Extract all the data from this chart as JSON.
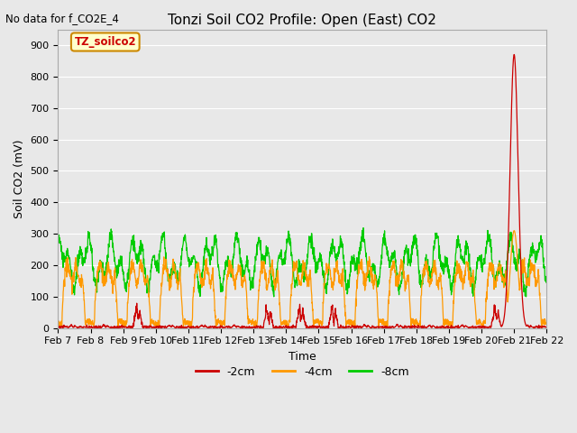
{
  "title": "Tonzi Soil CO2 Profile: Open (East) CO2",
  "subtitle": "No data for f_CO2E_4",
  "ylabel": "Soil CO2 (mV)",
  "xlabel": "Time",
  "legend_label": "TZ_soilco2",
  "series_labels": [
    "-2cm",
    "-4cm",
    "-8cm"
  ],
  "series_colors": [
    "#cc0000",
    "#ff9900",
    "#00cc00"
  ],
  "ylim": [
    0,
    950
  ],
  "yticks": [
    0,
    100,
    200,
    300,
    400,
    500,
    600,
    700,
    800,
    900
  ],
  "xtick_labels": [
    "Feb 7",
    "Feb 8",
    "Feb 9",
    "Feb 10",
    "Feb 11",
    "Feb 12",
    "Feb 13",
    "Feb 14",
    "Feb 15",
    "Feb 16",
    "Feb 17",
    "Feb 18",
    "Feb 19",
    "Feb 20",
    "Feb 21",
    "Feb 22"
  ],
  "fig_bg_color": "#e8e8e8",
  "plot_bg_color": "#e8e8e8",
  "grid_color": "#ffffff",
  "n_points": 2000
}
